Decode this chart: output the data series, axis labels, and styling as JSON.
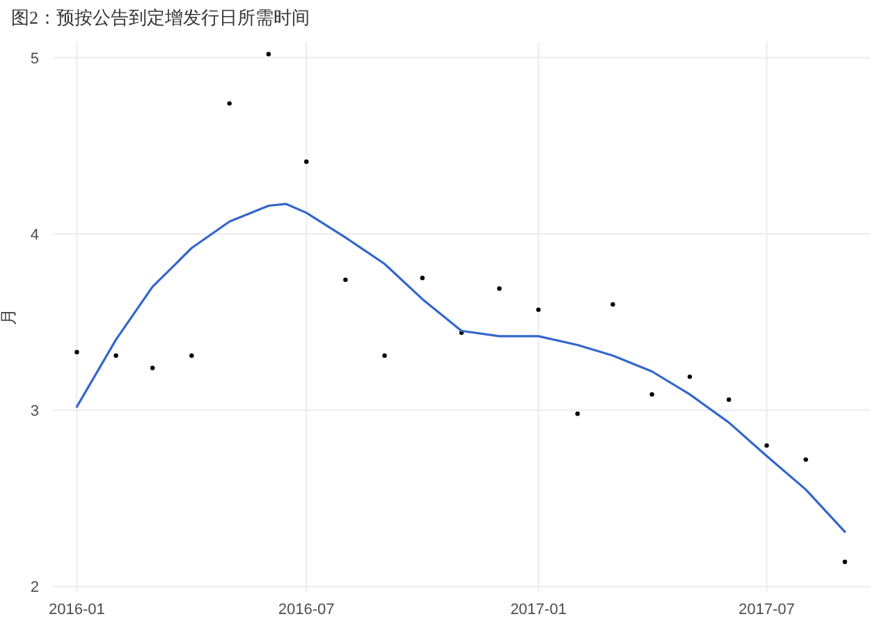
{
  "chart_data": {
    "type": "scatter",
    "title": "图2：预按公告到定增发行日所需时间",
    "ylabel": "月",
    "xlim": [
      "2015-12-13",
      "2017-09-21"
    ],
    "xticks": [
      {
        "value": "2016-01-01",
        "label": "2016-01"
      },
      {
        "value": "2016-07-01",
        "label": "2016-07"
      },
      {
        "value": "2017-01-01",
        "label": "2017-01"
      },
      {
        "value": "2017-07-01",
        "label": "2017-07"
      }
    ],
    "ylim": [
      1.97,
      5.09
    ],
    "yticks": [
      2,
      3,
      4,
      5
    ],
    "grid": true,
    "series": [
      {
        "color": "#000000",
        "marker": "circle",
        "x": [
          "2016-01-01",
          "2016-02-01",
          "2016-03-01",
          "2016-04-01",
          "2016-05-01",
          "2016-06-01",
          "2016-07-01",
          "2016-08-01",
          "2016-09-01",
          "2016-10-01",
          "2016-11-01",
          "2016-12-01",
          "2017-01-01",
          "2017-02-01",
          "2017-03-01",
          "2017-04-01",
          "2017-05-01",
          "2017-06-01",
          "2017-07-01",
          "2017-08-01",
          "2017-09-01"
        ],
        "values": [
          3.33,
          3.31,
          3.24,
          3.31,
          4.74,
          5.02,
          4.41,
          3.74,
          3.31,
          3.75,
          3.44,
          3.69,
          3.57,
          2.98,
          3.6,
          3.09,
          3.19,
          3.06,
          2.8,
          2.72,
          2.14
        ]
      },
      {
        "type": "line",
        "color": "#3366cc",
        "marker": "none",
        "x": [
          "2016-01-01",
          "2016-02-01",
          "2016-03-01",
          "2016-04-01",
          "2016-05-01",
          "2016-06-01",
          "2016-06-15",
          "2016-07-01",
          "2016-08-01",
          "2016-09-01",
          "2016-10-01",
          "2016-11-01",
          "2016-12-01",
          "2017-01-01",
          "2017-02-01",
          "2017-03-01",
          "2017-04-01",
          "2017-05-01",
          "2017-06-01",
          "2017-07-01",
          "2017-08-01",
          "2017-09-01"
        ],
        "values": [
          3.02,
          3.4,
          3.7,
          3.92,
          4.07,
          4.16,
          4.17,
          4.12,
          3.98,
          3.83,
          3.63,
          3.45,
          3.42,
          3.42,
          3.37,
          3.31,
          3.22,
          3.09,
          2.93,
          2.74,
          2.55,
          2.31
        ]
      }
    ]
  }
}
